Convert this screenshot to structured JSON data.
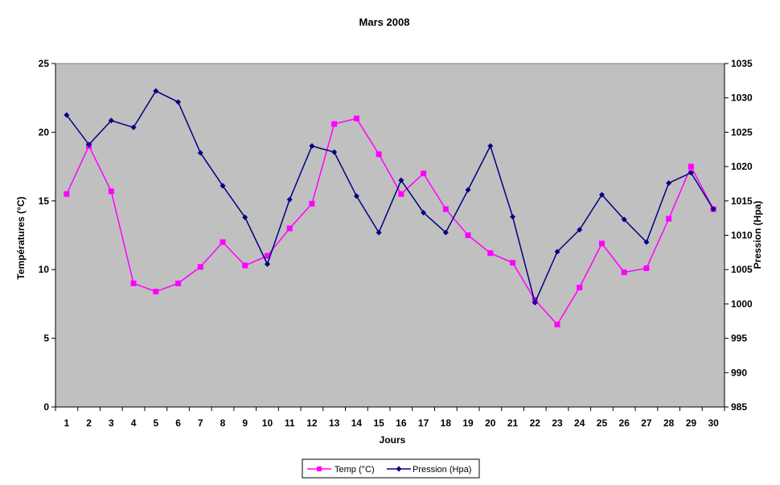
{
  "chart_data": {
    "type": "line",
    "title": "Mars 2008",
    "xlabel": "Jours",
    "ylabel_left": "Températures (°C)",
    "ylabel_right": "Pression (Hpa)",
    "categories": [
      "1",
      "2",
      "3",
      "4",
      "5",
      "6",
      "7",
      "8",
      "9",
      "10",
      "11",
      "12",
      "13",
      "14",
      "15",
      "16",
      "17",
      "18",
      "19",
      "20",
      "21",
      "22",
      "23",
      "24",
      "25",
      "26",
      "27",
      "28",
      "29",
      "30"
    ],
    "y_left_ticks": [
      "0",
      "5",
      "10",
      "15",
      "20",
      "25"
    ],
    "y_right_ticks": [
      "985",
      "990",
      "995",
      "1000",
      "1005",
      "1010",
      "1015",
      "1020",
      "1025",
      "1030",
      "1035"
    ],
    "ylim_left": [
      0,
      25
    ],
    "ylim_right": [
      985,
      1035
    ],
    "grid": false,
    "legend_position": "bottom-center",
    "plot_background": "#c0c0c0",
    "series": [
      {
        "name": "Temp (°C)",
        "axis": "left",
        "color": "#ff00ff",
        "marker": "square",
        "values": [
          15.5,
          19,
          15.7,
          9,
          8.4,
          9,
          10.2,
          12,
          10.3,
          11,
          13,
          14.8,
          20.6,
          21,
          18.4,
          15.5,
          17,
          14.4,
          12.5,
          11.2,
          10.5,
          7.8,
          6,
          8.7,
          11.9,
          9.8,
          10.1,
          13.7,
          17.5,
          14.4
        ]
      },
      {
        "name": "Pression (Hpa)",
        "axis": "right",
        "color": "#000080",
        "marker": "diamond",
        "values": [
          1027.5,
          1023.2,
          1026.7,
          1025.7,
          1031,
          1029.4,
          1022,
          1017.2,
          1012.6,
          1005.8,
          1015.2,
          1023,
          1022.1,
          1015.7,
          1010.4,
          1018,
          1013.3,
          1010.4,
          1016.6,
          1023,
          1012.7,
          1000.2,
          1007.6,
          1010.8,
          1015.9,
          1012.3,
          1009,
          1017.6,
          1019.1,
          1013.8
        ]
      }
    ]
  }
}
